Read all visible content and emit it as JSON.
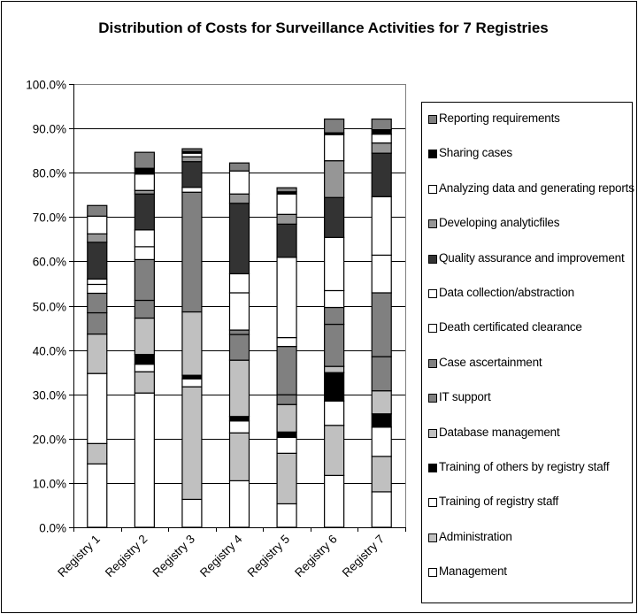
{
  "chart_data": {
    "type": "bar",
    "stacked": true,
    "title": "Distribution of Costs for Surveillance Activities for 7 Registries",
    "xlabel": "",
    "ylabel": "",
    "ylim": [
      0,
      100
    ],
    "yticks": [
      "0.0%",
      "10.0%",
      "20.0%",
      "30.0%",
      "40.0%",
      "50.0%",
      "60.0%",
      "70.0%",
      "80.0%",
      "90.0%",
      "100.0%"
    ],
    "grid": true,
    "legend_position": "right",
    "categories": [
      "Registry 1",
      "Registry 2",
      "Registry 3",
      "Registry 4",
      "Registry 5",
      "Registry 6",
      "Registry 7"
    ],
    "series": [
      {
        "name": "Management",
        "color": "#ffffff",
        "values": [
          14.3,
          30.3,
          6.3,
          10.5,
          5.3,
          11.7,
          8.0
        ]
      },
      {
        "name": "Administration",
        "color": "#c0c0c0",
        "values": [
          4.6,
          4.8,
          25.4,
          10.8,
          11.4,
          11.3,
          8.0
        ]
      },
      {
        "name": "Training of registry staff",
        "color": "#ffffff",
        "values": [
          15.8,
          1.7,
          1.8,
          2.7,
          3.6,
          5.5,
          6.6
        ]
      },
      {
        "name": "Training of others by registry staff",
        "color": "#000000",
        "values": [
          0,
          2.2,
          0.8,
          1.0,
          1.2,
          6.4,
          3.0
        ]
      },
      {
        "name": "Database management",
        "color": "#c0c0c0",
        "values": [
          8.9,
          8.2,
          14.3,
          12.7,
          6.2,
          1.4,
          5.2
        ]
      },
      {
        "name": "IT support",
        "color": "#808080",
        "values": [
          4.8,
          4.0,
          0,
          5.8,
          2.2,
          9.5,
          7.7
        ]
      },
      {
        "name": "Case ascertainment",
        "color": "#808080",
        "values": [
          4.4,
          9.2,
          27.0,
          1.0,
          10.9,
          3.8,
          14.4
        ]
      },
      {
        "name": "Death certificated clearance",
        "color": "#ffffff",
        "values": [
          2.0,
          2.9,
          1.1,
          8.4,
          2.0,
          3.8,
          8.5
        ]
      },
      {
        "name": "Data collection/abstraction",
        "color": "#ffffff",
        "values": [
          1.2,
          3.8,
          0,
          4.3,
          18.1,
          12.0,
          13.2
        ]
      },
      {
        "name": "Quality assurance and improvement",
        "color": "#333333",
        "values": [
          8.3,
          8.1,
          5.8,
          15.9,
          7.5,
          9.0,
          9.8
        ]
      },
      {
        "name": "Developing analyticfiles",
        "color": "#969696",
        "values": [
          1.9,
          0.8,
          1.1,
          2.1,
          2.2,
          8.3,
          2.3
        ]
      },
      {
        "name": "Analyzing data and generating reports",
        "color": "#ffffff",
        "values": [
          4.0,
          3.7,
          0.8,
          5.2,
          4.6,
          5.9,
          2.0
        ]
      },
      {
        "name": "Sharing cases",
        "color": "#000000",
        "values": [
          0,
          1.3,
          0.4,
          0,
          0.5,
          0.4,
          1.0
        ]
      },
      {
        "name": "Reporting requirements",
        "color": "#808080",
        "values": [
          2.4,
          3.6,
          0.6,
          1.8,
          0.9,
          3.1,
          2.4
        ]
      }
    ]
  }
}
